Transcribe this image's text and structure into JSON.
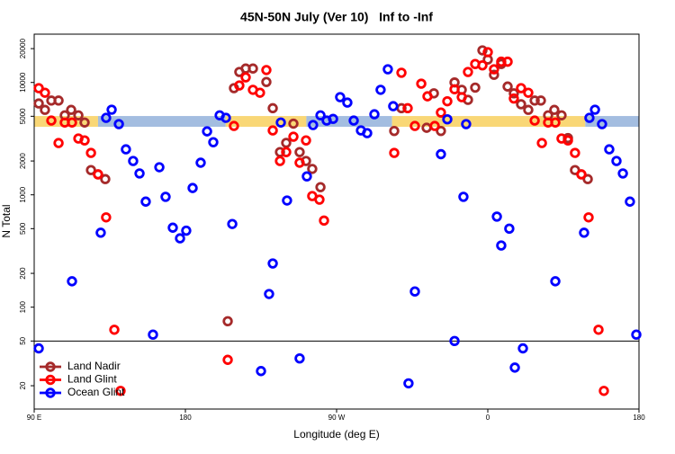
{
  "chart_data": {
    "type": "scatter",
    "title": "45N-50N July (Ver 10)   Inf to -Inf",
    "xlabel": "Longitude (deg E)",
    "ylabel": "N Total",
    "xlim": [
      90,
      450
    ],
    "xticks": [
      {
        "value": 90,
        "label": "90 E"
      },
      180,
      {
        "value": 270,
        "label": "90 W"
      },
      {
        "value": 360,
        "label": "0"
      },
      {
        "value": 450,
        "label": "180"
      }
    ],
    "ylim": [
      12.4,
      26900
    ],
    "yticks": [
      20,
      50,
      100,
      200,
      500,
      1000,
      2000,
      5000,
      10000,
      20000
    ],
    "log_y": true,
    "separator": 50,
    "legend": "bottom-left",
    "band_value": 4500,
    "bands": [
      {
        "start": 90,
        "end": 128,
        "color": "#f9d776"
      },
      {
        "start": 128,
        "end": 204,
        "color": "#a3bde0"
      },
      {
        "start": 204,
        "end": 252,
        "color": "#f9d776"
      },
      {
        "start": 252,
        "end": 303,
        "color": "#a3bde0"
      },
      {
        "start": 303,
        "end": 418,
        "color": "#f9d776"
      },
      {
        "start": 418,
        "end": 450,
        "color": "#a3bde0"
      }
    ],
    "series": [
      {
        "name": "Land Nadir",
        "color": "#a52a2a",
        "x": [
          92.7,
          96.4,
          100.2,
          104.5,
          108.2,
          112,
          116.3,
          120,
          123.8,
          128,
          132.3,
          205.2,
          208.9,
          212.1,
          215.9,
          220.2,
          228.2,
          232,
          236.3,
          240,
          244.3,
          248,
          251.8,
          255.5,
          260.4,
          304.3,
          308.6,
          323.6,
          327.9,
          332.1,
          340.2,
          344.5,
          348.2,
          352.5,
          356.8,
          360,
          363.7,
          368,
          371.8,
          375.5,
          379.8,
          384.1,
          387.9,
          391.6,
          395.9,
          399.6,
          403.9,
          407.7,
          411.9,
          415.7,
          419.5
        ],
        "values": [
          6500,
          5700,
          6900,
          6900,
          5100,
          5700,
          5100,
          4400,
          1660,
          1520,
          1380,
          75,
          8900,
          12400,
          13300,
          13300,
          10100,
          5900,
          2400,
          2900,
          4300,
          2400,
          2000,
          1700,
          1170,
          3700,
          5900,
          3950,
          8000,
          3700,
          10000,
          8600,
          7000,
          9000,
          19300,
          16000,
          11700,
          14600,
          9200,
          8000,
          6400,
          5700,
          6900,
          6900,
          5100,
          5700,
          5100,
          3200,
          1660,
          1520,
          1380
        ]
      },
      {
        "name": "Land Glint",
        "color": "#ff0000",
        "x": [
          92.7,
          96.4,
          100.2,
          104.5,
          108.2,
          112.5,
          116.3,
          120,
          123.8,
          128,
          132.8,
          137.7,
          141.4,
          205.2,
          208.9,
          212.1,
          215.9,
          220.2,
          224.4,
          228.2,
          232,
          236.3,
          240,
          244.3,
          248,
          251.8,
          255.5,
          259.8,
          262.5,
          304.3,
          308.6,
          312.3,
          316.6,
          320.4,
          324.1,
          328.4,
          332.1,
          335.9,
          340.2,
          344.5,
          348.2,
          352.5,
          356.8,
          360,
          363.7,
          368,
          371.8,
          375.5,
          379.8,
          384.1,
          387.9,
          392.2,
          395.9,
          400.2,
          403.9,
          407.7,
          411.9,
          415.7,
          420,
          425.9,
          429.1
        ],
        "values": [
          8900,
          8100,
          4580,
          2890,
          4400,
          4400,
          3170,
          3050,
          2360,
          1520,
          630,
          63,
          18,
          34,
          4100,
          9400,
          11100,
          8600,
          8100,
          12900,
          3740,
          2000,
          2400,
          3290,
          1930,
          3050,
          975,
          906,
          590,
          2360,
          12200,
          5900,
          4100,
          9750,
          7530,
          4100,
          5400,
          6800,
          8700,
          7400,
          12400,
          14600,
          14200,
          18600,
          13100,
          15300,
          15300,
          7200,
          8900,
          8100,
          4580,
          2890,
          4400,
          4400,
          3170,
          3050,
          2360,
          1520,
          630,
          63,
          18
        ]
      },
      {
        "name": "Ocean Glint",
        "color": "#0000ff",
        "x": [
          92.7,
          112.5,
          129.6,
          132.8,
          136.1,
          140.4,
          144.6,
          148.9,
          152.7,
          156.4,
          160.7,
          164.5,
          168.2,
          172.5,
          176.8,
          180.5,
          184.3,
          189.1,
          192.9,
          196.6,
          200.4,
          204.1,
          207.9,
          225,
          229.8,
          232,
          236.8,
          240.5,
          248,
          252.3,
          256,
          260.4,
          264.1,
          267.9,
          272.1,
          276.4,
          280.2,
          284.5,
          288.2,
          292.5,
          296.2,
          300.5,
          303.7,
          312.8,
          316.6,
          332.1,
          335.9,
          340.2,
          345.5,
          347.1,
          365.4,
          368,
          372.8,
          376.1,
          380.9,
          400.2,
          417.3,
          420.5,
          423.8,
          428,
          432.3,
          436.6,
          440.4,
          444.6,
          448.4
        ],
        "values": [
          43,
          170,
          460,
          4840,
          5720,
          4260,
          2540,
          2000,
          1550,
          870,
          57,
          1760,
          960,
          510,
          410,
          480,
          1150,
          1930,
          3670,
          2940,
          5100,
          4840,
          550,
          27,
          131,
          245,
          4400,
          890,
          35,
          1460,
          4180,
          5100,
          4580,
          4740,
          7400,
          6620,
          4580,
          3740,
          3540,
          5210,
          8600,
          13100,
          6150,
          21,
          138,
          2300,
          4700,
          50,
          960,
          4260,
          640,
          354,
          500,
          29,
          43,
          170,
          460,
          4840,
          5720,
          4260,
          2540,
          2000,
          1550,
          870,
          57
        ]
      }
    ]
  }
}
